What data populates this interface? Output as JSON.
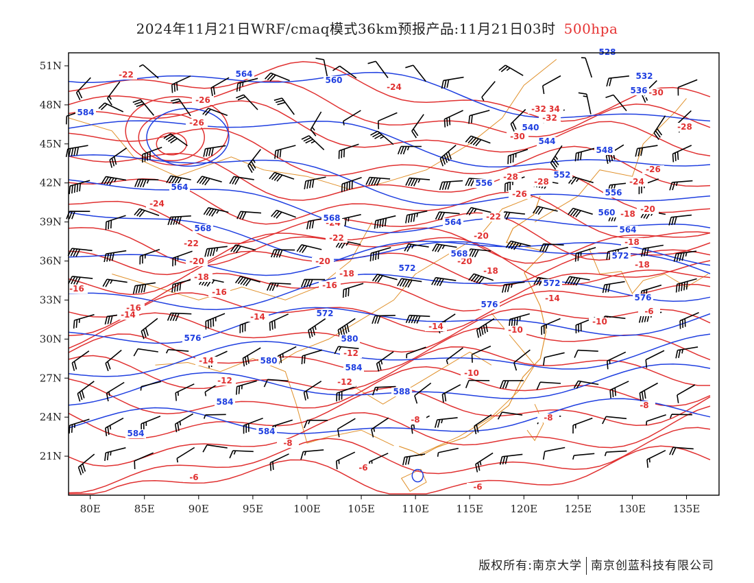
{
  "title": {
    "main": "2024年11月21日WRF/cmaq模式36km预报产品:11月21日03时",
    "level": "500hpa"
  },
  "axes": {
    "lat_labels": [
      "51N",
      "48N",
      "45N",
      "42N",
      "39N",
      "36N",
      "33N",
      "30N",
      "27N",
      "24N",
      "21N"
    ],
    "lon_labels": [
      "80E",
      "85E",
      "90E",
      "95E",
      "100E",
      "105E",
      "110E",
      "115E",
      "120E",
      "125E",
      "130E",
      "135E"
    ]
  },
  "contour_labels": {
    "temperature": [
      "-22",
      "-24",
      "-26",
      "-26",
      "-34",
      "-32",
      "-30",
      "-30",
      "-28",
      "-28",
      "-26",
      "-26",
      "-24",
      "-24",
      "-24",
      "-22",
      "-22",
      "-22",
      "-20",
      "-20",
      "-20",
      "-20",
      "-18",
      "-18",
      "-18",
      "-18",
      "-18",
      "-16",
      "-16",
      "-16",
      "-16",
      "-14",
      "-14",
      "-14",
      "-14",
      "-14",
      "-12",
      "-12",
      "-12",
      "-10",
      "-10",
      "-10",
      "-8",
      "-8",
      "-8",
      "-8",
      "-6",
      "-6",
      "-6",
      "-6",
      "-18",
      "-20",
      "-28",
      "-32"
    ],
    "height": [
      "584",
      "564",
      "560",
      "528",
      "532",
      "536",
      "540",
      "544",
      "548",
      "552",
      "556",
      "556",
      "560",
      "564",
      "564",
      "564",
      "568",
      "568",
      "568",
      "572",
      "572",
      "572",
      "572",
      "576",
      "576",
      "576",
      "580",
      "580",
      "584",
      "584",
      "584",
      "584",
      "588"
    ]
  },
  "colors": {
    "temperature_contour": "#e03030",
    "height_contour": "#1f3fe0",
    "border": "#e0902a",
    "wind_barb": "#000000"
  },
  "footer": {
    "copyright": "版权所有:南京大学",
    "company": "南京创蓝科技有限公司"
  }
}
